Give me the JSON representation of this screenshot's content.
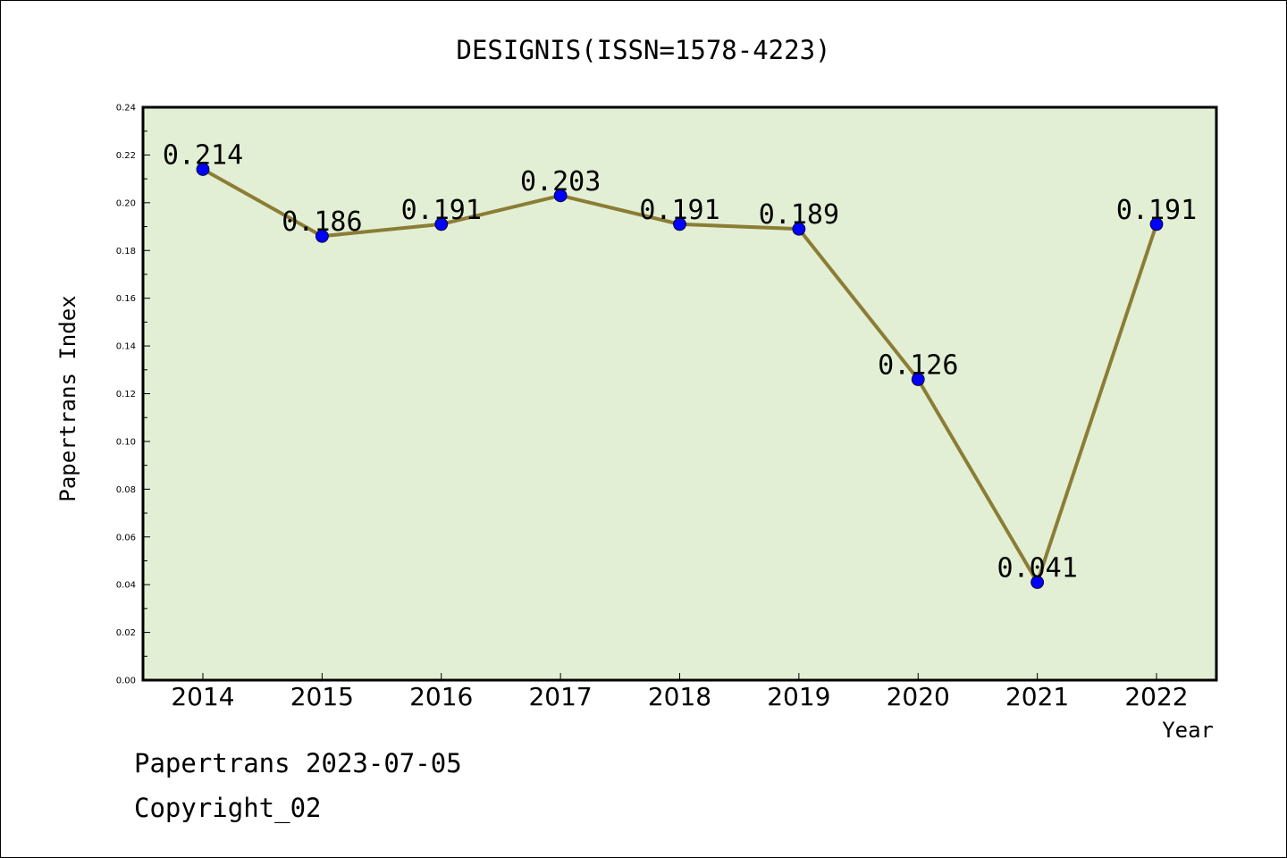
{
  "chart_data": {
    "type": "line",
    "title": "DESIGNIS(ISSN=1578-4223)",
    "xlabel": "Year",
    "ylabel": "Papertrans Index",
    "categories": [
      "2014",
      "2015",
      "2016",
      "2017",
      "2018",
      "2019",
      "2020",
      "2021",
      "2022"
    ],
    "values": [
      0.214,
      0.186,
      0.191,
      0.203,
      0.191,
      0.189,
      0.126,
      0.041,
      0.191
    ],
    "data_labels": [
      "0.214",
      "0.186",
      "0.191",
      "0.203",
      "0.191",
      "0.189",
      "0.126",
      "0.041",
      "0.191"
    ],
    "ylim": [
      0,
      0.24
    ],
    "yticks": [
      "0.00",
      "0.02",
      "0.04",
      "0.06",
      "0.08",
      "0.10",
      "0.12",
      "0.14",
      "0.16",
      "0.18",
      "0.20",
      "0.22",
      "0.24"
    ],
    "grid": false,
    "colors": {
      "plot_background": "#e2efd4",
      "line": "#8b7d35",
      "marker": "#0000ff"
    }
  },
  "footer": {
    "line1": "Papertrans 2023-07-05",
    "line2": "Copyright_02"
  }
}
